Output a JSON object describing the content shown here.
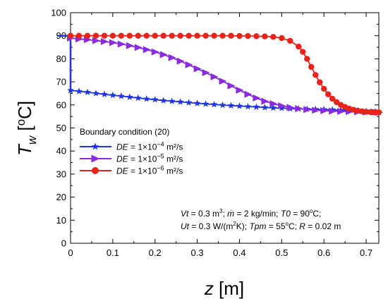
{
  "chart_data": {
    "type": "line",
    "xlabel": "z [m]",
    "ylabel": "Tw [°C]",
    "xlim": [
      0,
      0.73
    ],
    "ylim": [
      0,
      100
    ],
    "xticks": [
      "0",
      "0.1",
      "0.2",
      "0.3",
      "0.4",
      "0.5",
      "0.6",
      "0.7"
    ],
    "yticks": [
      "0",
      "10",
      "20",
      "30",
      "40",
      "50",
      "60",
      "70",
      "80",
      "90",
      "100"
    ],
    "grid": false,
    "boundary": {
      "color": "#1f35e0",
      "points": [
        [
          -0.03,
          90
        ],
        [
          0,
          90
        ],
        [
          0,
          66.3
        ],
        [
          0,
          66
        ]
      ]
    },
    "legend": {
      "title": "Boundary condition (20)",
      "placement": "lower-left"
    },
    "series": [
      {
        "name": "DE = 1×10⁻⁴ m²/s",
        "name_var": "DE",
        "name_value": " = 1×10",
        "name_exp": "−4",
        "name_unit": " m²/s",
        "color": "#1f35e0",
        "marker": "star",
        "x": [
          0.0,
          0.02,
          0.04,
          0.06,
          0.08,
          0.1,
          0.12,
          0.14,
          0.16,
          0.18,
          0.2,
          0.22,
          0.24,
          0.26,
          0.28,
          0.3,
          0.32,
          0.34,
          0.36,
          0.38,
          0.4,
          0.42,
          0.44,
          0.46,
          0.48,
          0.5,
          0.52,
          0.54,
          0.56,
          0.58,
          0.6,
          0.62,
          0.64,
          0.66,
          0.68,
          0.7,
          0.72,
          0.73
        ],
        "y": [
          66.3,
          65.9,
          65.5,
          65.0,
          64.6,
          64.2,
          63.8,
          63.4,
          63.0,
          62.6,
          62.3,
          61.9,
          61.6,
          61.3,
          61.0,
          60.7,
          60.4,
          60.2,
          59.9,
          59.7,
          59.5,
          59.3,
          59.1,
          58.9,
          58.7,
          58.6,
          58.4,
          58.3,
          58.2,
          58.1,
          58.0,
          57.9,
          57.7,
          57.6,
          57.4,
          57.2,
          57.0,
          56.8
        ]
      },
      {
        "name": "DE = 1×10⁻⁵ m²/s",
        "name_var": "DE",
        "name_value": " = 1×10",
        "name_exp": "−5",
        "name_unit": " m²/s",
        "color": "#8a2be2",
        "marker": "triangle",
        "x": [
          0.0,
          0.02,
          0.04,
          0.06,
          0.08,
          0.1,
          0.12,
          0.14,
          0.16,
          0.18,
          0.2,
          0.22,
          0.24,
          0.26,
          0.28,
          0.3,
          0.32,
          0.34,
          0.36,
          0.38,
          0.4,
          0.42,
          0.44,
          0.46,
          0.48,
          0.5,
          0.52,
          0.54,
          0.56,
          0.58,
          0.6,
          0.62,
          0.64,
          0.66,
          0.68,
          0.7,
          0.72,
          0.73
        ],
        "y": [
          89.0,
          88.6,
          88.3,
          87.9,
          87.5,
          87.0,
          86.4,
          85.7,
          84.9,
          84.0,
          83.0,
          81.8,
          80.5,
          79.0,
          77.4,
          75.7,
          74.0,
          72.2,
          70.3,
          68.3,
          66.4,
          64.6,
          63.0,
          61.6,
          60.5,
          59.6,
          58.9,
          58.4,
          58.0,
          57.7,
          57.5,
          57.3,
          57.2,
          57.1,
          57.0,
          56.9,
          56.9,
          56.8
        ]
      },
      {
        "name": "DE = 1×10⁻⁶ m²/s",
        "name_var": "DE",
        "name_value": " = 1×10",
        "name_exp": "−6",
        "name_unit": " m²/s",
        "color": "#e8231c",
        "marker": "circle",
        "x": [
          0.0,
          0.02,
          0.04,
          0.06,
          0.08,
          0.1,
          0.12,
          0.14,
          0.16,
          0.18,
          0.2,
          0.22,
          0.24,
          0.26,
          0.28,
          0.3,
          0.32,
          0.34,
          0.36,
          0.38,
          0.4,
          0.42,
          0.44,
          0.46,
          0.48,
          0.5,
          0.52,
          0.54,
          0.55,
          0.56,
          0.57,
          0.58,
          0.59,
          0.6,
          0.61,
          0.62,
          0.63,
          0.64,
          0.65,
          0.66,
          0.67,
          0.68,
          0.69,
          0.7,
          0.71,
          0.72,
          0.73
        ],
        "y": [
          90.0,
          90.0,
          90.0,
          90.0,
          90.0,
          90.0,
          90.0,
          90.0,
          90.0,
          90.0,
          90.0,
          90.0,
          90.0,
          90.0,
          90.0,
          90.0,
          90.0,
          90.0,
          90.0,
          90.0,
          89.9,
          89.9,
          89.8,
          89.7,
          89.5,
          89.0,
          87.8,
          85.3,
          83.0,
          80.0,
          76.5,
          73.0,
          69.8,
          67.0,
          64.6,
          62.7,
          61.2,
          60.0,
          59.1,
          58.4,
          57.9,
          57.5,
          57.2,
          57.0,
          56.9,
          56.8,
          56.8
        ]
      }
    ],
    "annotation_lines": [
      [
        {
          "t": "Vt",
          "i": true
        },
        {
          "t": " = 0.3 m"
        },
        {
          "t": "3",
          "sup": true
        },
        {
          "t": "; "
        },
        {
          "t": "ṁ",
          "i": true
        },
        {
          "t": " = 2 kg/min; "
        },
        {
          "t": "T0",
          "i": true
        },
        {
          "t": " = 90"
        },
        {
          "t": "o",
          "sup": true
        },
        {
          "t": "C;"
        }
      ],
      [
        {
          "t": "Ut",
          "i": true
        },
        {
          "t": " = 0.3 W/(m"
        },
        {
          "t": "2",
          "sup": true
        },
        {
          "t": "K); "
        },
        {
          "t": "Tpm",
          "i": true
        },
        {
          "t": " = 55"
        },
        {
          "t": "o",
          "sup": true
        },
        {
          "t": "C; "
        },
        {
          "t": "R",
          "i": true
        },
        {
          "t": " = 0.02 m"
        }
      ]
    ]
  }
}
